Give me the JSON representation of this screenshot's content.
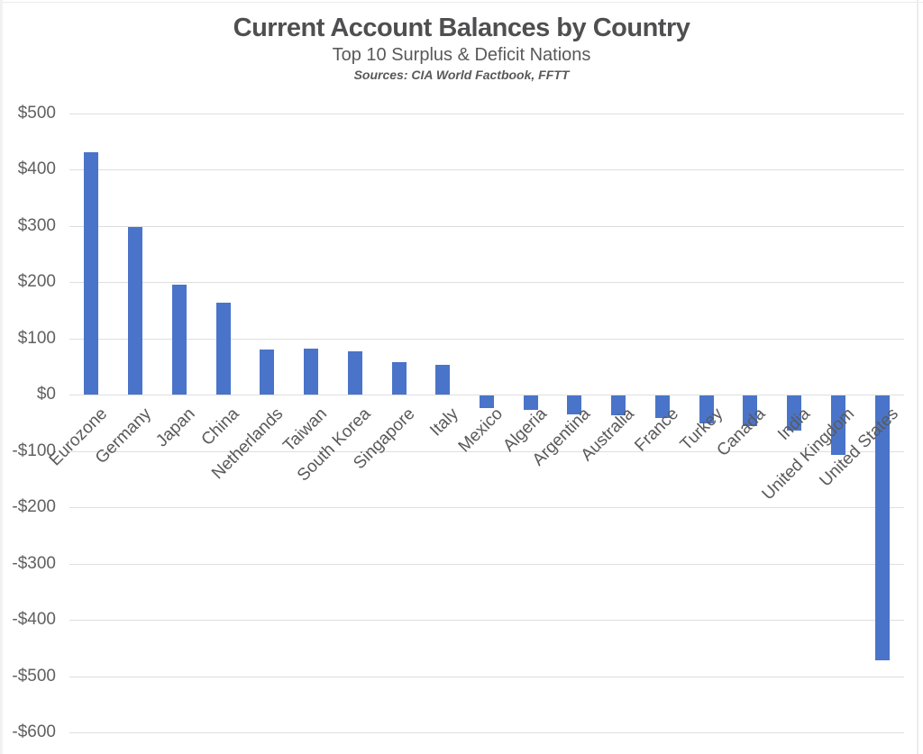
{
  "page": {
    "background_color": "#ffffff",
    "edge_line_color": "#ececec"
  },
  "header": {
    "title": "Current Account Balances by Country",
    "subtitle": "Top 10 Surplus & Deficit Nations",
    "sources": "Sources: CIA World Factbook, FFTT"
  },
  "chart_data": {
    "type": "bar",
    "title": "Current Account Balances by Country",
    "subtitle": "Top 10 Surplus & Deficit Nations",
    "annotation": "Sources: CIA World Factbook, FFTT",
    "categories": [
      "Eurozone",
      "Germany",
      "Japan",
      "China",
      "Netherlands",
      "Taiwan",
      "South Korea",
      "Singapore",
      "Italy",
      "Mexico",
      "Algeria",
      "Argentina",
      "Australia",
      "France",
      "Turkey",
      "Canada",
      "India",
      "United Kingdom",
      "United States"
    ],
    "values": [
      430,
      297,
      195,
      163,
      80,
      81,
      77,
      58,
      53,
      -22,
      -25,
      -33,
      -35,
      -40,
      -49,
      -55,
      -62,
      -105,
      -470
    ],
    "xlabel": "",
    "ylabel": "",
    "ylim": [
      -600,
      500
    ],
    "y_tick_step": 100,
    "y_tick_values": [
      500,
      400,
      300,
      200,
      100,
      0,
      -100,
      -200,
      -300,
      -400,
      -500,
      -600
    ],
    "y_tick_labels": [
      "$500",
      "$400",
      "$300",
      "$200",
      "$100",
      "$0",
      "-$100",
      "-$200",
      "-$300",
      "-$400",
      "-$500",
      "-$600"
    ],
    "grid": true,
    "legend": false,
    "x_label_rotation_deg": -45,
    "bar_color": "#4a74c9",
    "gridline_color": "#dedede",
    "axis_label_color": "#5a5a5a"
  }
}
